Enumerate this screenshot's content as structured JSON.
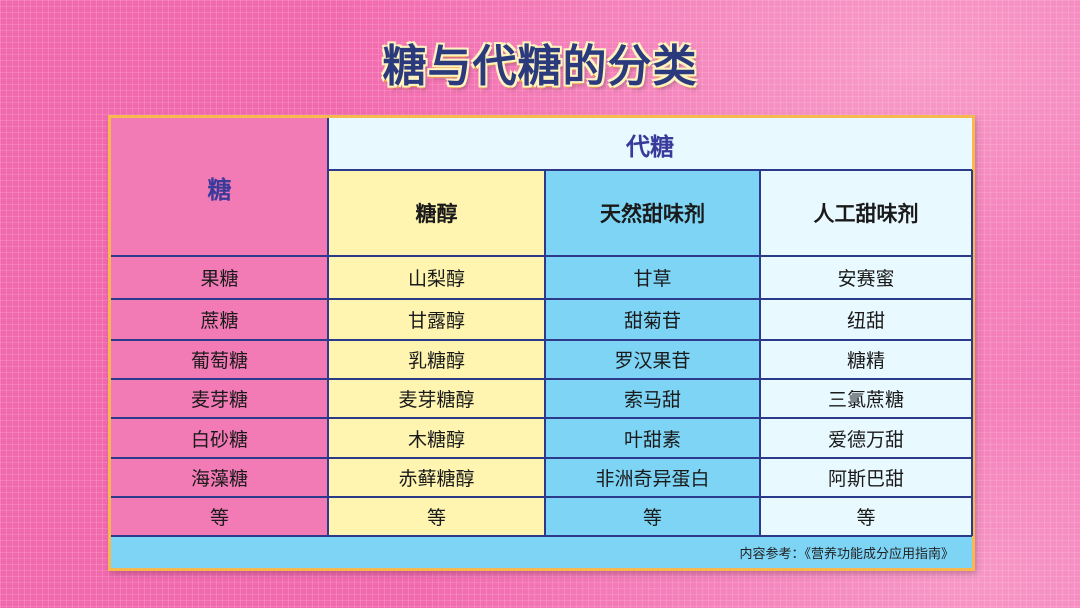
{
  "title": "糖与代糖的分类",
  "table": {
    "sugar_header": "糖",
    "substitute_header": "代糖",
    "sub_headers": [
      "糖醇",
      "天然甜味剂",
      "人工甜味剂"
    ],
    "rows": [
      [
        "果糖",
        "山梨醇",
        "甘草",
        "安赛蜜"
      ],
      [
        "蔗糖",
        "甘露醇",
        "甜菊苷",
        "纽甜"
      ],
      [
        "葡萄糖",
        "乳糖醇",
        "罗汉果苷",
        "糖精"
      ],
      [
        "麦芽糖",
        "麦芽糖醇",
        "索马甜",
        "三氯蔗糖"
      ],
      [
        "白砂糖",
        "木糖醇",
        "叶甜素",
        "爱德万甜"
      ],
      [
        "海藻糖",
        "赤藓糖醇",
        "非洲奇异蛋白",
        "阿斯巴甜"
      ],
      [
        "等",
        "等",
        "等",
        "等"
      ]
    ],
    "footnote": "内容参考：《营养功能成分应用指南》"
  },
  "colors": {
    "sugar": "#f27bb5",
    "sugar_alcohol": "#fff5b0",
    "natural": "#7dd4f5",
    "artificial": "#e8f9ff",
    "lines": "#2b3a8a",
    "border": "#f7b84f",
    "title": "#2b3a7c"
  }
}
